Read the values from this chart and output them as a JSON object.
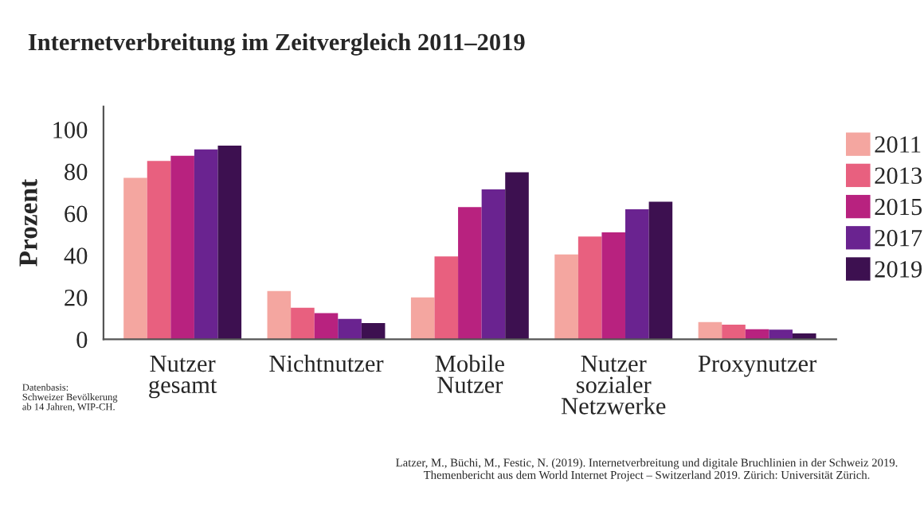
{
  "chart_data": {
    "type": "bar",
    "title": "Internetverbreitung im Zeitvergleich 2011–2019",
    "ylabel": "Prozent",
    "categories": [
      "Nutzer\ngesamt",
      "Nichtnutzer",
      "Mobile\nNutzer",
      "Nutzer\nsozialer\nNetzwerke",
      "Proxynutzer"
    ],
    "series": [
      {
        "name": "2011",
        "color": "#f4a6a0",
        "values": [
          77,
          23,
          20,
          40.5,
          8.2
        ]
      },
      {
        "name": "2013",
        "color": "#e8607f",
        "values": [
          85,
          15,
          39.5,
          49,
          7
        ]
      },
      {
        "name": "2015",
        "color": "#b8227f",
        "values": [
          87.5,
          12.5,
          63,
          51,
          4.8
        ]
      },
      {
        "name": "2017",
        "color": "#6a2390",
        "values": [
          90.5,
          9.7,
          71.5,
          62,
          4.6
        ]
      },
      {
        "name": "2019",
        "color": "#3d1050",
        "values": [
          92.3,
          7.7,
          79.6,
          65.6,
          2.8
        ]
      }
    ],
    "ylim": [
      0,
      111
    ],
    "yticks": [
      0,
      20,
      40,
      60,
      80,
      100
    ],
    "grid": false,
    "legend": "right",
    "annotations": [
      "Datenbasis:\nSchweizer Bevölkerung\nab 14 Jahren, WIP-CH.",
      "Latzer, M., Büchi, M., Festic, N. (2019). Internetverbreitung und digitale Bruchlinien in der Schweiz 2019. Themenbericht aus dem World Internet Project – Switzerland 2019. Zürich: Universität Zürich."
    ]
  }
}
